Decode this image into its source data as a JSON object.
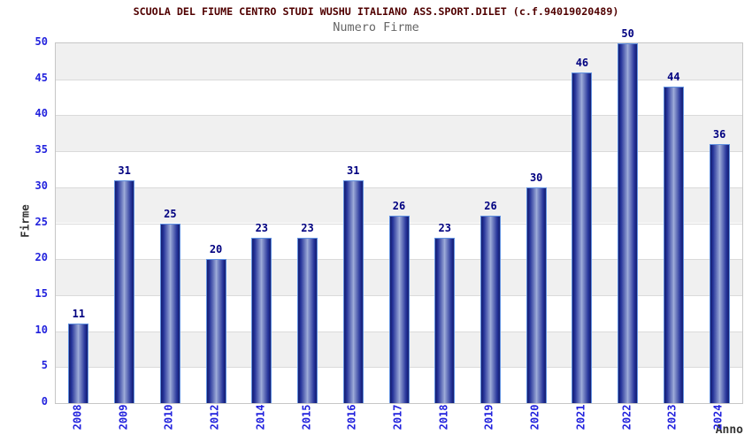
{
  "chart_data": {
    "type": "bar",
    "title": "SCUOLA DEL FIUME CENTRO STUDI WUSHU ITALIANO ASS.SPORT.DILET (c.f.94019020489)",
    "subtitle": "Numero Firme",
    "xlabel": "Anno",
    "ylabel": "Firme",
    "categories": [
      "2008",
      "2009",
      "2010",
      "2012",
      "2014",
      "2015",
      "2016",
      "2017",
      "2018",
      "2019",
      "2020",
      "2021",
      "2022",
      "2023",
      "2024"
    ],
    "values": [
      11,
      31,
      25,
      20,
      23,
      23,
      31,
      26,
      23,
      26,
      30,
      46,
      50,
      44,
      36
    ],
    "ylim": [
      0,
      50
    ],
    "ytick_step": 5,
    "grid": true,
    "legend": "none",
    "background_bands": "alternating gray/white from top",
    "colors": {
      "title": "#500000",
      "subtitle": "#666666",
      "axis_label": "#333333",
      "tick_label": "#2222dd",
      "value_label": "#000080",
      "bar_edge": "#141d6e",
      "bar_center": "#a2b0dc",
      "bar_border": "#6090e0",
      "band_gray": "#f0f0f0",
      "gridline": "#dadada",
      "plot_border": "#c6c6c6"
    }
  }
}
